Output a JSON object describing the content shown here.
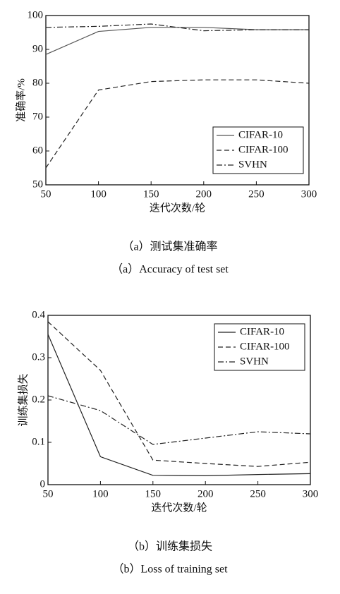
{
  "chart_data": [
    {
      "type": "line",
      "xlabel": "迭代次数/轮",
      "ylabel": "准确率/%",
      "caption": "（a）测试集准确率",
      "caption_en": "（a）Accuracy of test set",
      "x": [
        50,
        100,
        150,
        200,
        250,
        300
      ],
      "xlim": [
        50,
        300
      ],
      "xticks": [
        50,
        100,
        150,
        200,
        250,
        300
      ],
      "ylim": [
        50,
        100
      ],
      "yticks": [
        50,
        60,
        70,
        80,
        90,
        100
      ],
      "legend": "lower right",
      "series": [
        {
          "name": "CIFAR-10",
          "color": "#555555",
          "dash": "solid",
          "values": [
            88.5,
            95.3,
            96.5,
            96.5,
            95.8,
            95.8
          ]
        },
        {
          "name": "CIFAR-100",
          "color": "#222222",
          "dash": "dashed",
          "values": [
            55,
            78,
            80.5,
            81,
            81,
            80
          ]
        },
        {
          "name": "SVHN",
          "color": "#222222",
          "dash": "dashdot",
          "values": [
            96.5,
            96.8,
            97.5,
            95.5,
            95.8,
            95.8
          ]
        }
      ]
    },
    {
      "type": "line",
      "xlabel": "迭代次数/轮",
      "ylabel": "训练集损失",
      "caption": "（b）训练集损失",
      "caption_en": "（b）Loss of training set",
      "x": [
        50,
        100,
        150,
        200,
        250,
        300
      ],
      "xlim": [
        50,
        300
      ],
      "xticks": [
        50,
        100,
        150,
        200,
        250,
        300
      ],
      "ylim": [
        0,
        0.4
      ],
      "yticks": [
        0,
        0.1,
        0.2,
        0.3,
        0.4
      ],
      "legend": "upper right",
      "series": [
        {
          "name": "CIFAR-10",
          "color": "#222222",
          "dash": "solid",
          "values": [
            0.355,
            0.066,
            0.022,
            0.021,
            0.024,
            0.026
          ]
        },
        {
          "name": "CIFAR-100",
          "color": "#222222",
          "dash": "dashed",
          "values": [
            0.385,
            0.27,
            0.058,
            0.05,
            0.043,
            0.053
          ]
        },
        {
          "name": "SVHN",
          "color": "#222222",
          "dash": "dashdot",
          "values": [
            0.21,
            0.175,
            0.095,
            0.11,
            0.125,
            0.12
          ]
        }
      ]
    }
  ]
}
